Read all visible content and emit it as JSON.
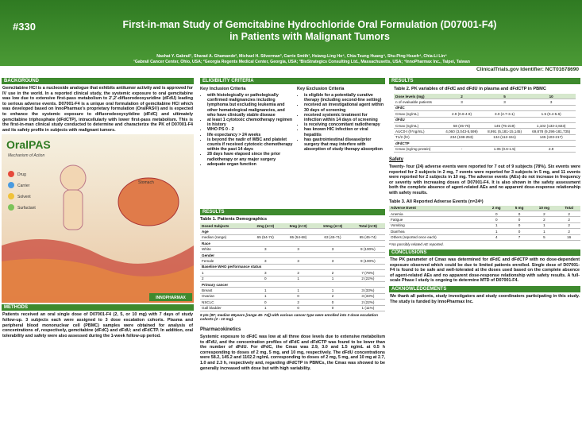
{
  "header": {
    "number": "#330",
    "title": "First-in-man Study of Gemcitabine Hydrochloride Oral Formulation (D07001-F4) in Patients with Malignant Tumors",
    "authors": "Nashat Y. Gabrail¹, Sharad A. Ghamande², Michael H. Silverman³, Carrie Smith¹, Hsiang-Ling Ho⁴, Chia-Tsung Huang⁴, Shu-Ping Hsueh⁴, Chia-Li Lin⁴",
    "affiliations": "¹Gabrail Cancer Center, Ohio, USA; ²Georgia Regents Medical Center, Georgia, USA; ³BioStrategics Consulting Ltd., Massachusetts, USA; ⁴InnoPharmax Inc., Taipei, Taiwan",
    "identifier": "ClinicalTrials.gov Identifier: NCT01678690"
  },
  "background": {
    "heading": "BACKGROUND",
    "text": "Gemcitabine HCl is a nucleoside analogue that exhibits antitumor activity and is approved for IV use in the world. In a reported clinical study, the systemic exposure to oral gemcitabine was low due to extensive first-pass metabolism to 2',2'-difluorodeoxyuridine (dFdU) leading to serious adverse events. D07001-F4 is a unique oral formulation of gemcitabine HCl which was developed based on InnoPharmax's proprietary formulation (OralPAS®) and is expected to enhance the systemic exposure to difluorodeoxycytidine (dFdC) and ultimately gemcitabine triphosphate (dFdCTP), intracellularly with lower first-pass metabolism. This is the first-in-man clinical study conducted to determine and characterize the PK of D07001-F4 and its safety profile in subjects with malignant tumors."
  },
  "figure": {
    "title": "OralPAS",
    "subtitle": "Mechanism of Action",
    "legend": [
      "Drug",
      "Carrier",
      "Solvent",
      "Surfactant"
    ],
    "stomach": "Stomach",
    "brand": "INNOPHARMAX"
  },
  "methods": {
    "heading": "METHODS",
    "text": "Patients received an oral single dose of D07001-F4 (2, 5, or 10 mg) with 7 days of study follow-up. 3 subjects each were assigned to 3 dose escalation cohorts. Plasma and peripheral blood mononuclear cell (PBMC) samples were obtained for analysis of concentrations of, respectively, gemcitabine (dFdC) and dFdU; and dFdCTP. In addition, oral tolerability and safety were also assessed during the 1-week follow-up period."
  },
  "eligibility": {
    "heading": "ELIGIBILITY  CRITERIA",
    "inclusion_title": "Key Inclusion Criteria",
    "inclusion": [
      "with histologically or pathologically confirmed malignancies including lymphoma but excluding leukemia and other hematological malignancies, and who have clinically stable disease",
      "at least 1 cytotoxic chemotherapy regimen in history",
      "WHO PS 0 - 2",
      "life expectancy > 24 weeks",
      "is beyond the nadir of WBC and platelet counts if received cytotoxic chemotherapy within the past 14 days",
      "28 days have elapsed since the prior radiotherapy or any major surgery",
      "adequate organ function"
    ],
    "exclusion_title": "Key Exclusion Criteria",
    "exclusion": [
      "is eligible for a potentially curative therapy (including second-line setting)",
      "received an investigational agent within 30 days of screening",
      "received systemic treatment for infection within 14 days of screening",
      "is receiving concomitant radiotherapy",
      "has known HIC infection or viral hepatitis",
      "has gastrointestinal disease/prior surgery that may interfere with absorption of study therapy absorption"
    ]
  },
  "results1": {
    "heading": "RESULTS",
    "table_title": "Table 1. Patients Demographics",
    "table": {
      "header": [
        "Dosed Subjects",
        "2mg (n=3)",
        "5mg (n=3)",
        "10mg (n=3)",
        "Total (n=9)"
      ],
      "rows": [
        [
          "Age"
        ],
        [
          "median (range)",
          "65 (54-74)",
          "65 (54-68)",
          "63 (45-71)",
          "65 (45-74)"
        ],
        [
          "Race"
        ],
        [
          "White",
          "3",
          "3",
          "3",
          "9 (100%)"
        ],
        [
          "Gender"
        ],
        [
          "Female",
          "3",
          "3",
          "3",
          "9 (100%)"
        ],
        [
          "Baseline WHO performance status"
        ],
        [
          "1",
          "3",
          "2",
          "2",
          "7 (78%)"
        ],
        [
          "2",
          "0",
          "1",
          "1",
          "2 (22%)"
        ],
        [
          "Primary cancer"
        ],
        [
          "Breast",
          "1",
          "1",
          "1",
          "3 (33%)"
        ],
        [
          "Ovarian",
          "1",
          "0",
          "2",
          "3 (33%)"
        ],
        [
          "NSCLC",
          "0",
          "2",
          "0",
          "2 (22%)"
        ],
        [
          "Gall bladder",
          "1",
          "0",
          "0",
          "1 (11%)"
        ]
      ]
    },
    "footnote": "9 pts (9F; median 65years [range 45- 74]) with various cancer type were enrolled into 3 dose escalation cohorts (2 - 10 mg).",
    "pk_title": "Pharmacokinetics",
    "pk_text": "Systemic exposure to dFdC was low at all three dose levels due to extensive metabolism to dFdU, and the concentration profiles of dFdC and dFdCTP was found to be lower than the number of dFdU. For dFdC, the Cmax was 2.9, 3.0 and 1.5 ng/mL at 0.5 h corresponding to doses of 2 mg, 5 mg, and 10 mg, respectively. The dFdU concentrations were 58.2, 145.2 and 1102.2 ng/mL corresponding to doses of 2 mg, 5 mg, and 10 mg at 2.7, 1.0 and 2.3 h, respectively and, regarding dFdCTP in PBMCs, the Cmax was showed to be generally increased with dose but with high variability."
  },
  "results2": {
    "heading": "RESULTS",
    "table_title": "Table 2.  PK variables of dFdC and dFdU in plasma and dFdCTP in PBMC",
    "table": {
      "header": [
        "Dose levels (mg)",
        "2",
        "5",
        "10"
      ],
      "rows": [
        [
          "n of evaluable patients",
          "3",
          "3",
          "3"
        ],
        [
          "dFdC"
        ],
        [
          "Cmax (ng/mL)",
          "2.9 (0.6-4.9)",
          "3.0 (2.7-3.1)",
          "1.5 (0.4-5.6)"
        ],
        [
          "dFdU"
        ],
        [
          "Cmax (ng/mL)",
          "58 (45-76)",
          "145 (75-219)",
          "1,102 (133-2,823)"
        ],
        [
          "AUC0-t (h*ng/mL)",
          "4,060 (3,043-5,599)",
          "8,991 (5,181-15,145)",
          "69,878 (9,296-181,735)"
        ],
        [
          "T1/2 (hr)",
          "234 (198-253)",
          "134 (112-151)",
          "145 (103-217)"
        ],
        [
          "dFdCTP"
        ],
        [
          "Cmax (ng/mg protein)",
          "-",
          "1.05 (0.6-1.5)",
          "2.9"
        ]
      ]
    },
    "safety_title": "Safety",
    "safety_text": "Twenty- four (24) adverse events were reported for 7 out of 9 subjects (78%). Six events were reported for 2 subjects in 2 mg, 7 events were reported for 3 subjects in 5 mg, and 11 events were reported for 2 subjects in 10 mg. The adverse events (AEs) do not increase in frequency or severity with increasing doses of D07001-F4. It is also shown in the safety assessment both the complete absence of agent-related AEs and no apparent dose-response relationship with safety results.",
    "table3_title": "Table 3. All Reported Adverse Events (n=24ᵃ)",
    "table3": {
      "header": [
        "Adverse Event",
        "2 mg",
        "5 mg",
        "10 mg",
        "Total"
      ],
      "rows": [
        [
          "Anemia",
          "0",
          "0",
          "2",
          "2"
        ],
        [
          "Fatigue",
          "0",
          "0",
          "2",
          "2"
        ],
        [
          "Vomiting",
          "1",
          "0",
          "1",
          "2"
        ],
        [
          "Diarrhea",
          "1",
          "0",
          "1",
          "2"
        ],
        [
          "Others (reported once each)",
          "4",
          "7",
          "5",
          "16"
        ]
      ]
    },
    "table3_footnote": "ᵃ No possibly related AE reported."
  },
  "conclusions": {
    "heading": "CONCLUSIONS",
    "text": "The PK parameter of Cmax was determined for dFdC and dFdCTP with no dose-dependent exposure observed which could be due to limited patients enrolled. Single dose of D07001-F4 is found to be safe and well-tolerated at the doses used based on the complete absence of agent-related AEs and no apparent dose-response relationship with safety results. A full-scale Phase I study is ongoing to determine MTD of D07001-F4."
  },
  "acknowledgements": {
    "heading": "ACKNOWLEDGEMENTS",
    "text": "We thank all patients, study investigators and study coordinators participating in this study. The study is funded by InnoPharmax Inc."
  }
}
